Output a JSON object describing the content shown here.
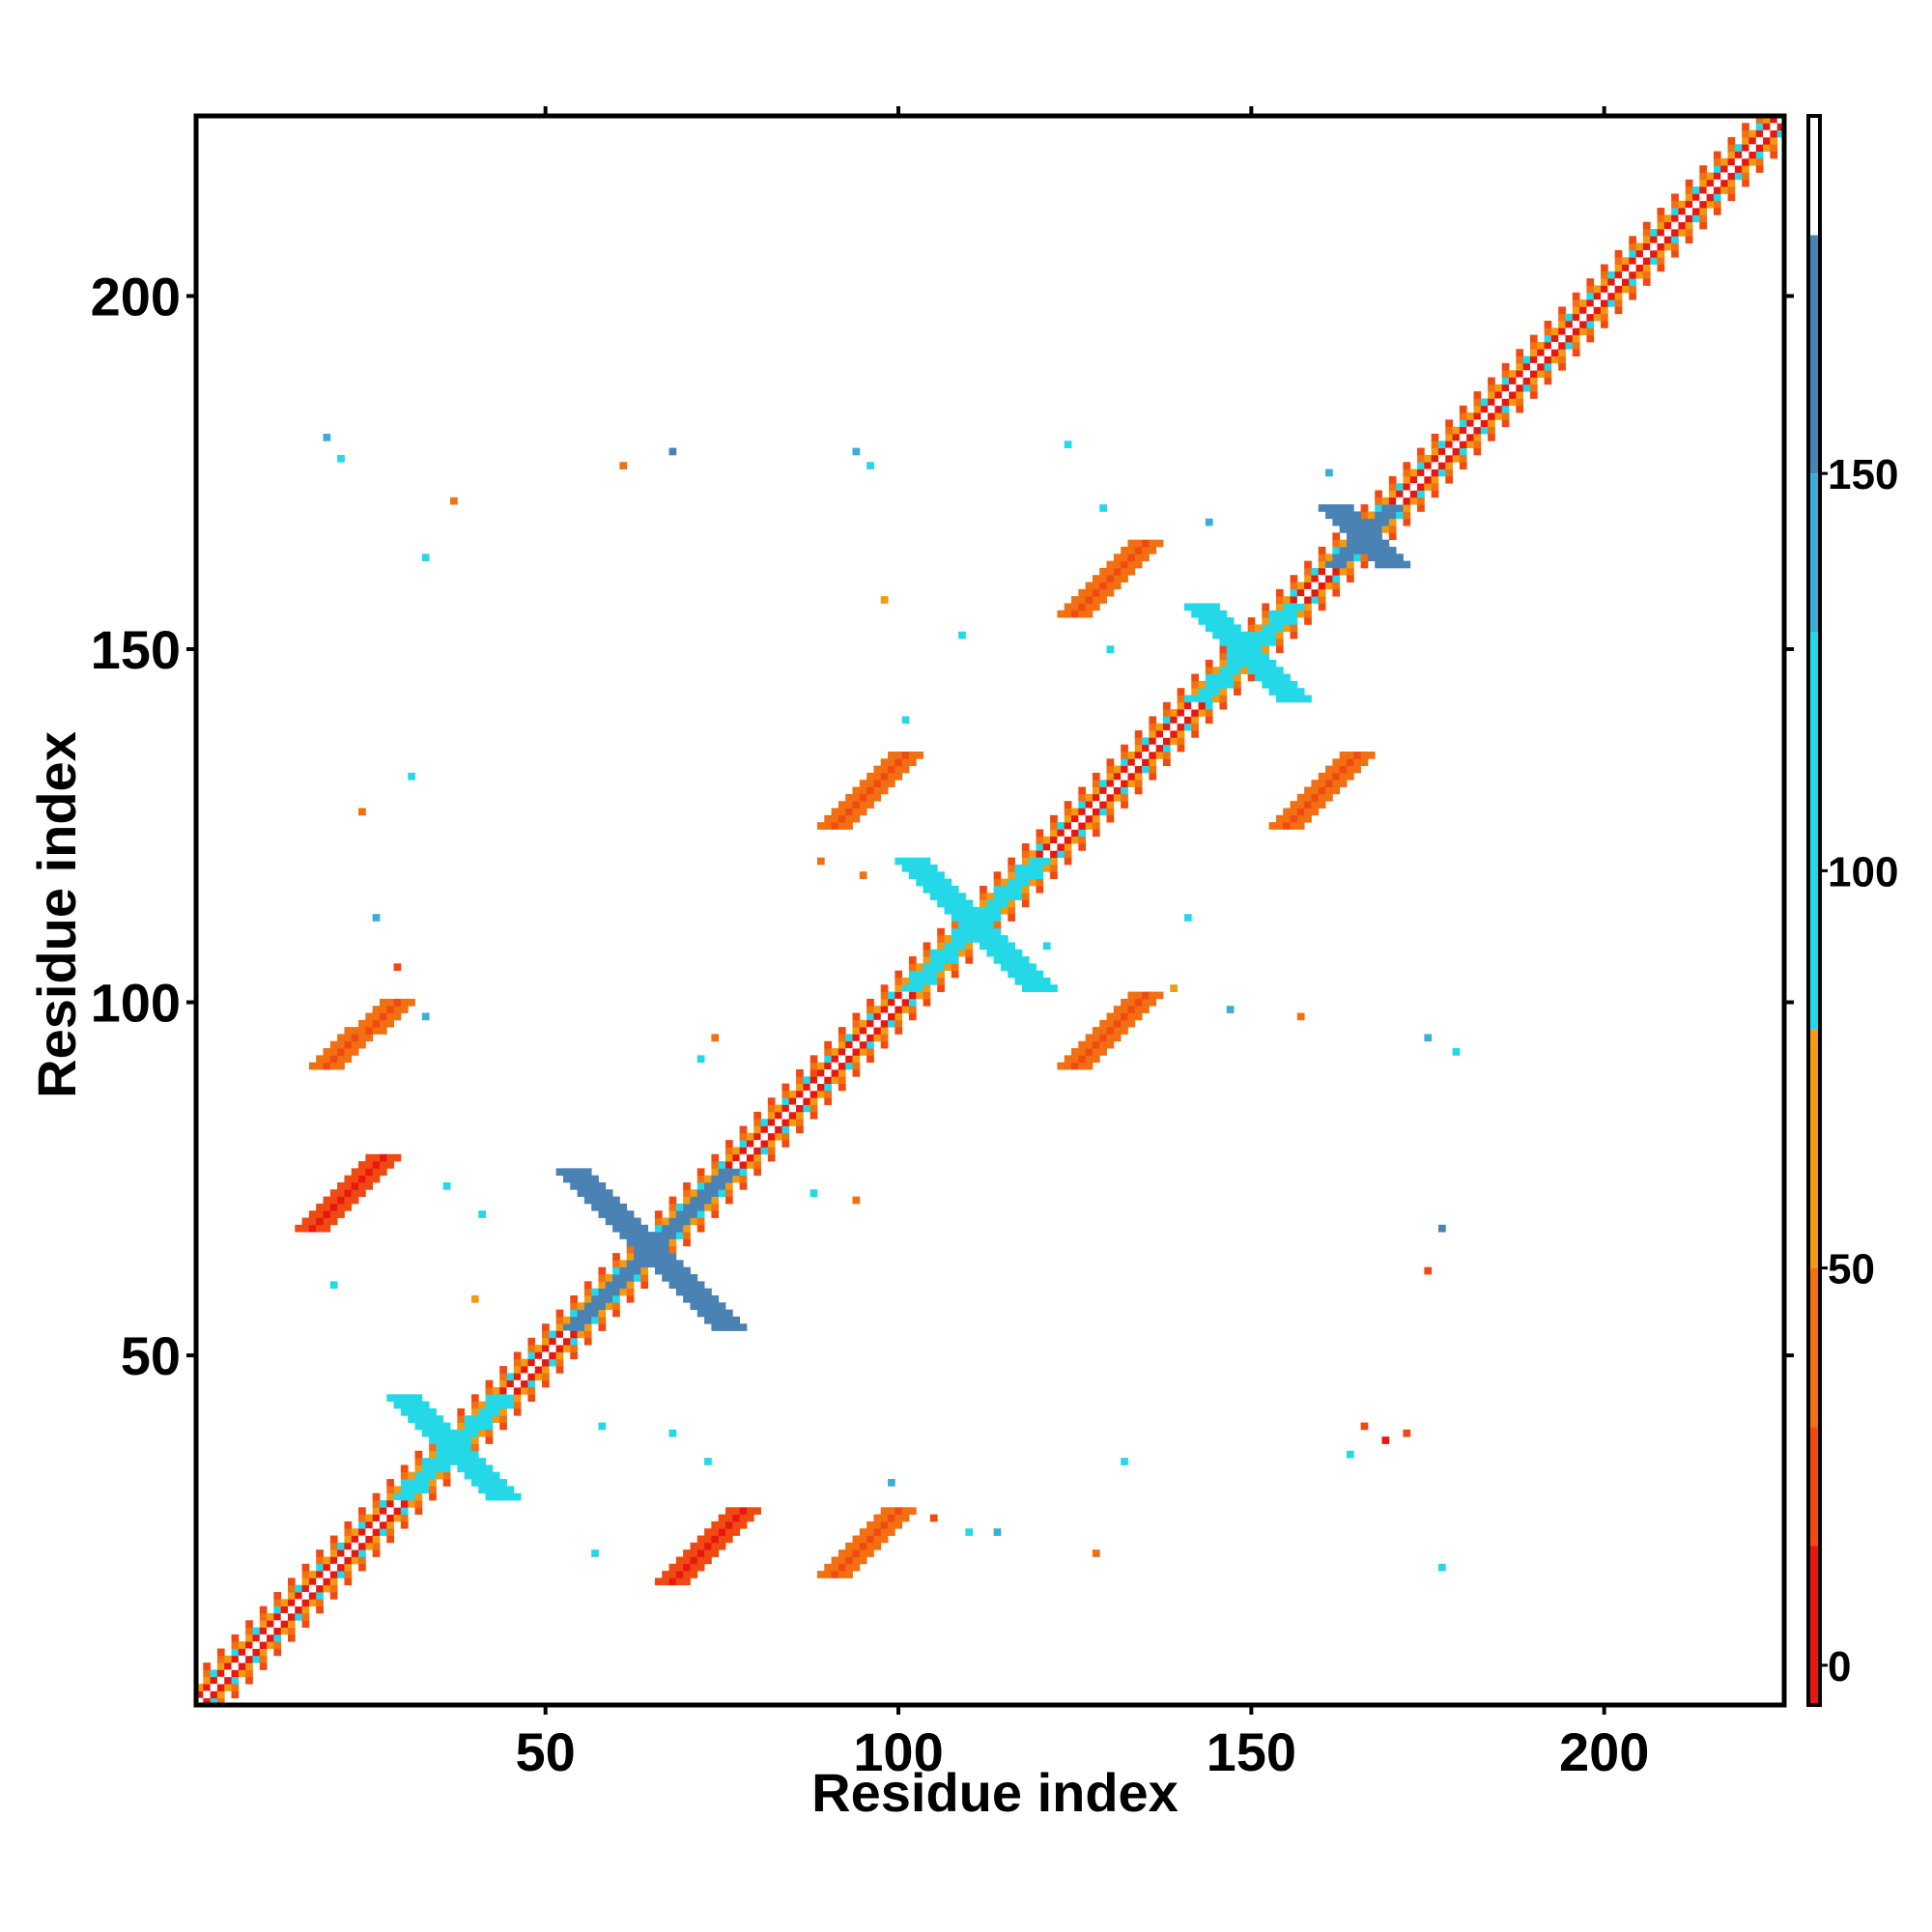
{
  "chart_data": {
    "type": "heatmap",
    "title": "",
    "xlabel": "Residue index",
    "ylabel": "Residue index",
    "xlim": [
      0.5,
      225.5
    ],
    "ylim": [
      0.5,
      225.5
    ],
    "x_ticks": [
      50,
      100,
      150,
      200
    ],
    "y_ticks": [
      50,
      100,
      150,
      200
    ],
    "x_tick_labels": [
      "50",
      "100",
      "150",
      "200"
    ],
    "y_tick_labels": [
      "50",
      "100",
      "150",
      "200"
    ],
    "grid": false,
    "legend": "colorbar-right",
    "colorbar": {
      "range": [
        -5,
        195
      ],
      "ticks": [
        0,
        50,
        100,
        150
      ],
      "tick_labels": [
        "0",
        "50",
        "100",
        "150"
      ],
      "bins": [
        {
          "from": -5,
          "to": 15,
          "color": "#e8170f"
        },
        {
          "from": 15,
          "to": 30,
          "color": "#f04a12"
        },
        {
          "from": 30,
          "to": 50,
          "color": "#f26f12"
        },
        {
          "from": 50,
          "to": 80,
          "color": "#f29a12"
        },
        {
          "from": 80,
          "to": 130,
          "color": "#24d8e8"
        },
        {
          "from": 130,
          "to": 150,
          "color": "#3aaed6"
        },
        {
          "from": 150,
          "to": 180,
          "color": "#4a82b4"
        },
        {
          "from": 180,
          "to": 195,
          "color": "#ffffff"
        }
      ]
    },
    "diagonal": {
      "from": 1,
      "to": 225,
      "value_on_diagonal": 190,
      "value_near": 60
    },
    "blocks": [
      {
        "x": [
          54,
          76
        ],
        "y": [
          54,
          76
        ],
        "kind": "anti",
        "value": 165
      },
      {
        "x": [
          30,
          44
        ],
        "y": [
          30,
          44
        ],
        "kind": "anti",
        "value": 110
      },
      {
        "x": [
          102,
          120
        ],
        "y": [
          102,
          120
        ],
        "kind": "anti",
        "value": 110
      },
      {
        "x": [
          143,
          156
        ],
        "y": [
          143,
          156
        ],
        "kind": "anti",
        "value": 110
      },
      {
        "x": [
          162,
          170
        ],
        "y": [
          162,
          170
        ],
        "kind": "anti",
        "value": 160
      },
      {
        "x": [
          68,
          78
        ],
        "y": [
          18,
          28
        ],
        "kind": "parallel",
        "value": 10
      },
      {
        "x": [
          91,
          100
        ],
        "y": [
          19,
          28
        ],
        "kind": "parallel",
        "value": 20
      },
      {
        "x": [
          17,
          27
        ],
        "y": [
          68,
          78
        ],
        "kind": "parallel",
        "value": 10
      },
      {
        "x": [
          19,
          29
        ],
        "y": [
          91,
          100
        ],
        "kind": "parallel",
        "value": 20
      },
      {
        "x": [
          91,
          101
        ],
        "y": [
          125,
          135
        ],
        "kind": "parallel",
        "value": 20
      },
      {
        "x": [
          125,
          135
        ],
        "y": [
          91,
          101
        ],
        "kind": "parallel",
        "value": 20
      },
      {
        "x": [
          125,
          135
        ],
        "y": [
          155,
          165
        ],
        "kind": "parallel",
        "value": 20
      },
      {
        "x": [
          155,
          165
        ],
        "y": [
          125,
          135
        ],
        "kind": "parallel",
        "value": 20
      }
    ],
    "scatter_points": [
      {
        "x": 19,
        "y": 180,
        "value": 140
      },
      {
        "x": 21,
        "y": 177,
        "value": 110
      },
      {
        "x": 37,
        "y": 171,
        "value": 30
      },
      {
        "x": 33,
        "y": 163,
        "value": 110
      },
      {
        "x": 61,
        "y": 176,
        "value": 30
      },
      {
        "x": 68,
        "y": 178,
        "value": 160
      },
      {
        "x": 94,
        "y": 178,
        "value": 140
      },
      {
        "x": 96,
        "y": 176,
        "value": 110
      },
      {
        "x": 124,
        "y": 179,
        "value": 110
      },
      {
        "x": 129,
        "y": 170,
        "value": 110
      },
      {
        "x": 161,
        "y": 175,
        "value": 140
      },
      {
        "x": 98,
        "y": 157,
        "value": 60
      },
      {
        "x": 109,
        "y": 152,
        "value": 110
      },
      {
        "x": 101,
        "y": 140,
        "value": 110
      },
      {
        "x": 130,
        "y": 150,
        "value": 110
      },
      {
        "x": 95,
        "y": 118,
        "value": 30
      },
      {
        "x": 89,
        "y": 120,
        "value": 30
      },
      {
        "x": 24,
        "y": 127,
        "value": 30
      },
      {
        "x": 31,
        "y": 132,
        "value": 110
      },
      {
        "x": 26,
        "y": 112,
        "value": 140
      },
      {
        "x": 29,
        "y": 105,
        "value": 20
      },
      {
        "x": 33,
        "y": 98,
        "value": 140
      },
      {
        "x": 74,
        "y": 95,
        "value": 30
      },
      {
        "x": 72,
        "y": 92,
        "value": 110
      },
      {
        "x": 88,
        "y": 90,
        "value": 20
      },
      {
        "x": 121,
        "y": 108,
        "value": 110
      },
      {
        "x": 141,
        "y": 112,
        "value": 110
      },
      {
        "x": 147,
        "y": 99,
        "value": 140
      },
      {
        "x": 157,
        "y": 98,
        "value": 30
      },
      {
        "x": 175,
        "y": 95,
        "value": 140
      },
      {
        "x": 179,
        "y": 93,
        "value": 110
      },
      {
        "x": 177,
        "y": 68,
        "value": 160
      },
      {
        "x": 175,
        "y": 62,
        "value": 20
      },
      {
        "x": 88,
        "y": 73,
        "value": 110
      },
      {
        "x": 94,
        "y": 72,
        "value": 30
      },
      {
        "x": 36,
        "y": 74,
        "value": 110
      },
      {
        "x": 41,
        "y": 70,
        "value": 110
      },
      {
        "x": 20,
        "y": 60,
        "value": 110
      },
      {
        "x": 40,
        "y": 58,
        "value": 60
      },
      {
        "x": 58,
        "y": 40,
        "value": 110
      },
      {
        "x": 68,
        "y": 39,
        "value": 110
      },
      {
        "x": 73,
        "y": 35,
        "value": 110
      },
      {
        "x": 57,
        "y": 22,
        "value": 110
      },
      {
        "x": 99,
        "y": 32,
        "value": 140
      },
      {
        "x": 105,
        "y": 27,
        "value": 20
      },
      {
        "x": 110,
        "y": 25,
        "value": 110
      },
      {
        "x": 114,
        "y": 25,
        "value": 140
      },
      {
        "x": 132,
        "y": 35,
        "value": 110
      },
      {
        "x": 128,
        "y": 22,
        "value": 30
      },
      {
        "x": 164,
        "y": 36,
        "value": 110
      },
      {
        "x": 166,
        "y": 40,
        "value": 20
      },
      {
        "x": 169,
        "y": 38,
        "value": 10
      },
      {
        "x": 172,
        "y": 39,
        "value": 20
      },
      {
        "x": 177,
        "y": 20,
        "value": 110
      },
      {
        "x": 139,
        "y": 102,
        "value": 60
      },
      {
        "x": 144,
        "y": 168,
        "value": 140
      }
    ]
  }
}
